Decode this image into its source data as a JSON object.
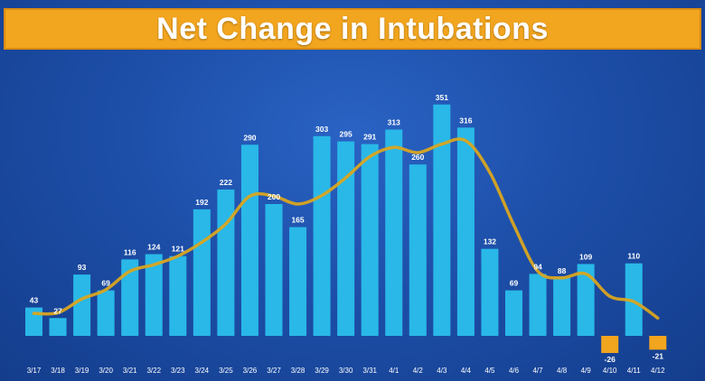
{
  "title": "Net Change in Intubations",
  "colors": {
    "bar": "#29b8e8",
    "negative_bar": "#f2a51e",
    "trend_line": "#d9a520",
    "title_bar": "#f2a51e",
    "background": "#1d4fa9",
    "text": "#ffffff"
  },
  "chart_data": {
    "type": "bar",
    "title": "Net Change in Intubations",
    "xlabel": "",
    "ylabel": "",
    "ylim": [
      -26,
      351
    ],
    "grid": false,
    "categories": [
      "3/17",
      "3/18",
      "3/19",
      "3/20",
      "3/21",
      "3/22",
      "3/23",
      "3/24",
      "3/25",
      "3/26",
      "3/27",
      "3/28",
      "3/29",
      "3/30",
      "3/31",
      "4/1",
      "4/2",
      "4/3",
      "4/4",
      "4/5",
      "4/6",
      "4/7",
      "4/8",
      "4/9",
      "4/10",
      "4/11",
      "4/12"
    ],
    "series": [
      {
        "name": "Net change",
        "type": "bar",
        "values": [
          43,
          27,
          93,
          69,
          116,
          124,
          121,
          192,
          222,
          290,
          200,
          165,
          303,
          295,
          291,
          313,
          260,
          351,
          316,
          132,
          69,
          94,
          88,
          109,
          -26,
          110,
          -21
        ]
      },
      {
        "name": "Trend",
        "type": "line",
        "values": [
          34,
          35,
          56,
          70,
          98,
          108,
          121,
          142,
          170,
          212,
          212,
          200,
          213,
          240,
          272,
          286,
          278,
          291,
          296,
          248,
          168,
          98,
          88,
          94,
          60,
          52,
          27
        ]
      }
    ]
  }
}
